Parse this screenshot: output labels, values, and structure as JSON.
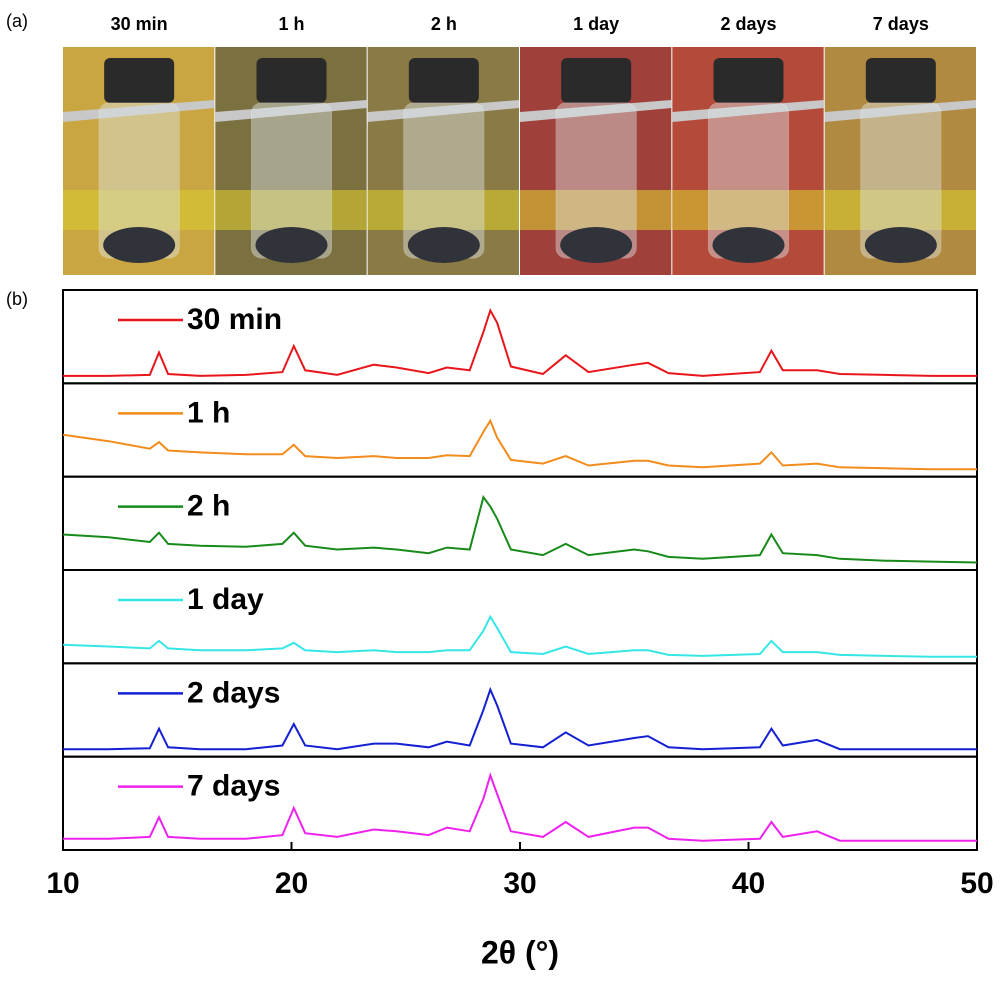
{
  "panel_labels": [
    "(a)",
    "(b)"
  ],
  "photos": {
    "captions": [
      "30 min",
      "1 h",
      "2 h",
      "1 day",
      "2 days",
      "7 days"
    ]
  },
  "chart_data": {
    "type": "line",
    "xlabel": "2θ (°)",
    "xlim": [
      10,
      50
    ],
    "xticks": [
      10,
      20,
      30,
      40,
      50
    ],
    "ylim": [
      0,
      100
    ],
    "x": [
      10,
      12,
      13.8,
      14.2,
      14.6,
      16,
      18,
      19.6,
      20.1,
      20.6,
      22,
      23.6,
      24.6,
      26,
      26.8,
      27.8,
      28.4,
      28.7,
      29.0,
      29.6,
      31,
      32,
      33,
      35,
      35.6,
      36.5,
      38,
      40.5,
      41,
      41.5,
      43,
      44,
      46,
      48,
      50
    ],
    "series": [
      {
        "name": "30 min",
        "color": "#e8161b",
        "values": [
          8,
          8,
          9,
          33,
          10,
          8,
          9,
          12,
          40,
          14,
          9,
          20,
          17,
          11,
          17,
          14,
          55,
          78,
          65,
          18,
          10,
          30,
          12,
          20,
          22,
          11,
          8,
          12,
          35,
          14,
          14,
          10,
          9,
          8,
          8
        ]
      },
      {
        "name": "1 h",
        "color": "#f28c1c",
        "values": [
          45,
          38,
          30,
          37,
          28,
          26,
          24,
          24,
          34,
          22,
          20,
          22,
          20,
          20,
          23,
          22,
          48,
          60,
          42,
          18,
          14,
          22,
          12,
          17,
          17,
          12,
          10,
          14,
          26,
          12,
          14,
          10,
          9,
          8,
          8
        ]
      },
      {
        "name": "2 h",
        "color": "#188a1a",
        "values": [
          38,
          35,
          30,
          40,
          28,
          26,
          25,
          28,
          40,
          26,
          22,
          24,
          22,
          18,
          24,
          22,
          78,
          68,
          55,
          22,
          16,
          28,
          16,
          22,
          20,
          14,
          12,
          16,
          38,
          18,
          16,
          12,
          10,
          9,
          8
        ]
      },
      {
        "name": "1 day",
        "color": "#35e6e6",
        "values": [
          20,
          18,
          16,
          24,
          16,
          14,
          14,
          16,
          22,
          14,
          12,
          14,
          12,
          12,
          14,
          14,
          35,
          50,
          38,
          12,
          10,
          18,
          10,
          14,
          14,
          9,
          8,
          10,
          24,
          12,
          12,
          9,
          8,
          7,
          7
        ]
      },
      {
        "name": "2 days",
        "color": "#1420d2",
        "values": [
          8,
          8,
          9,
          30,
          10,
          8,
          8,
          12,
          35,
          12,
          8,
          14,
          14,
          10,
          16,
          12,
          50,
          72,
          55,
          14,
          10,
          26,
          12,
          20,
          22,
          10,
          8,
          10,
          30,
          12,
          18,
          8,
          8,
          8,
          8
        ]
      },
      {
        "name": "7 days",
        "color": "#ee22ee",
        "values": [
          12,
          12,
          14,
          35,
          14,
          12,
          12,
          16,
          45,
          18,
          14,
          22,
          20,
          16,
          24,
          20,
          55,
          80,
          60,
          20,
          14,
          30,
          14,
          24,
          24,
          12,
          10,
          12,
          30,
          14,
          20,
          10,
          10,
          10,
          10
        ]
      }
    ]
  }
}
